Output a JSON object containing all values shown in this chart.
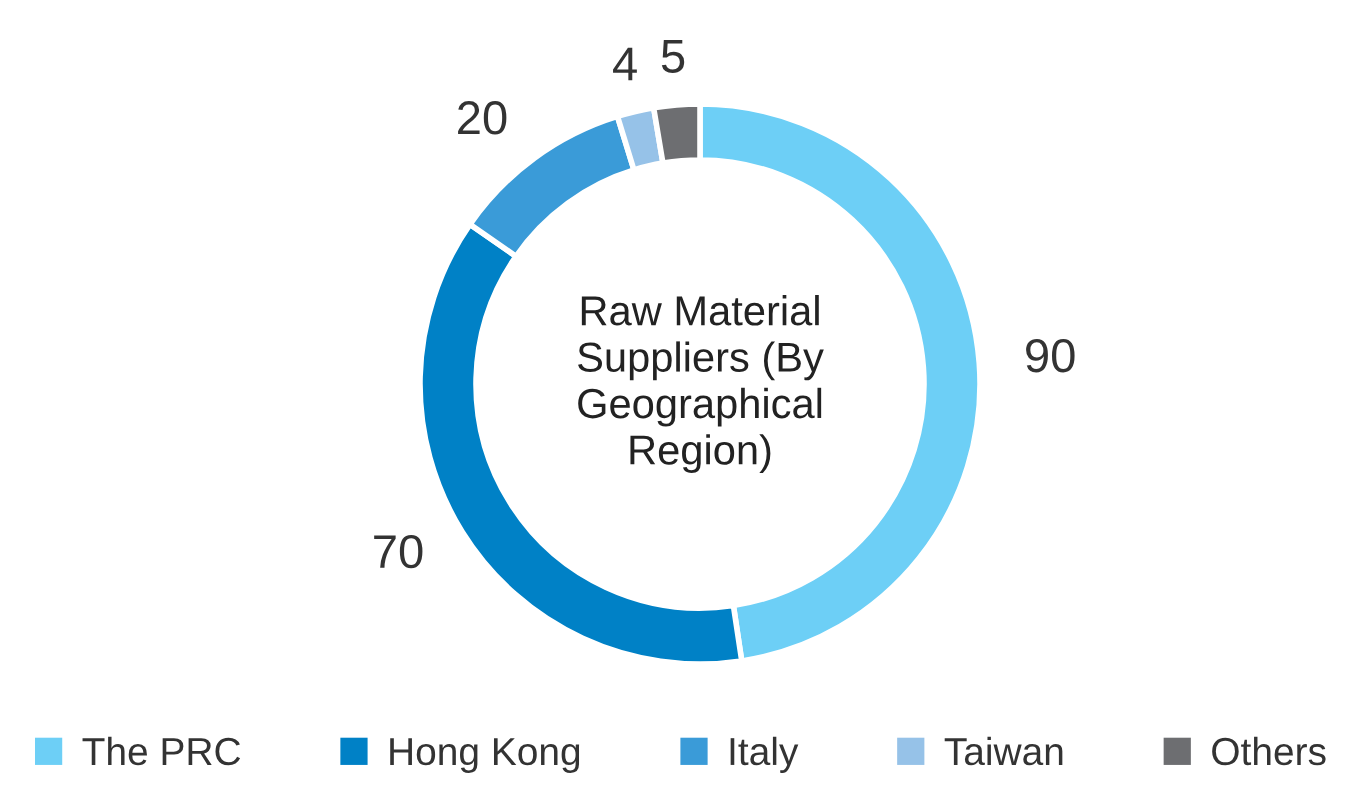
{
  "chart_data": {
    "type": "donut",
    "title": "Raw Material\nSuppliers (By\nGeographical\nRegion)",
    "categories": [
      "The PRC",
      "Hong Kong",
      "Italy",
      "Taiwan",
      "Others"
    ],
    "values": [
      90,
      70,
      20,
      4,
      5
    ],
    "colors": [
      "#6dcff6",
      "#0081c6",
      "#3a9bd8",
      "#96c2e8",
      "#6d6e71"
    ],
    "data_labels": true,
    "legend": "bottom"
  }
}
